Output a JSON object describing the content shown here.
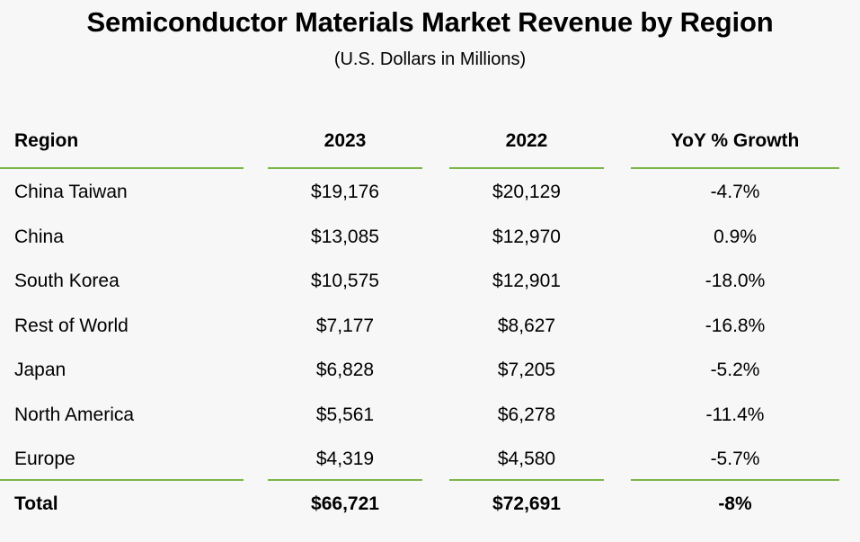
{
  "colors": {
    "rule": "#7ab648",
    "background": "#f7f7f7",
    "text": "#000000"
  },
  "chart_data": {
    "type": "table",
    "title": "Semiconductor Materials Market Revenue by Region",
    "subtitle": "(U.S. Dollars in Millions)",
    "columns": [
      "Region",
      "2023",
      "2022",
      "YoY % Growth"
    ],
    "rows": [
      [
        "China Taiwan",
        "$19,176",
        "$20,129",
        "-4.7%"
      ],
      [
        "China",
        "$13,085",
        "$12,970",
        "0.9%"
      ],
      [
        "South Korea",
        "$10,575",
        "$12,901",
        "-18.0%"
      ],
      [
        "Rest of World",
        "$7,177",
        "$8,627",
        "-16.8%"
      ],
      [
        "Japan",
        "$6,828",
        "$7,205",
        "-5.2%"
      ],
      [
        "North America",
        "$5,561",
        "$6,278",
        "-11.4%"
      ],
      [
        "Europe",
        "$4,319",
        "$4,580",
        "-5.7%"
      ]
    ],
    "total": [
      "Total",
      "$66,721",
      "$72,691",
      "-8%"
    ]
  }
}
